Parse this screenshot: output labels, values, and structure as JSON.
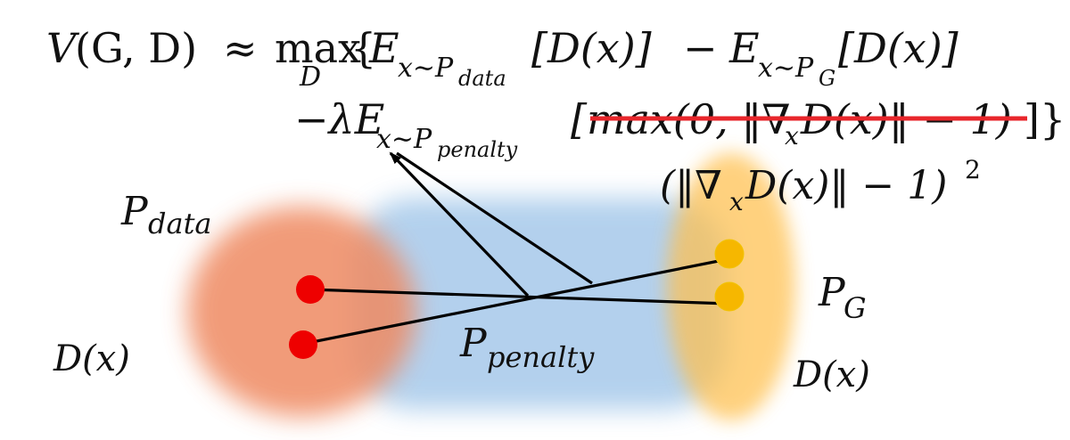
{
  "formula": {
    "lhs_v": "V",
    "lhs_args": "(G, D)",
    "approx": "≈",
    "max_word": "max",
    "max_sub": "D",
    "open_brace": "{",
    "e1": "E",
    "e1_sub": "x∼P",
    "e1_subsub": "data",
    "term1": "[D(x)]",
    "minus1": "−",
    "e2": "E",
    "e2_sub": "x∼P",
    "e2_subsub": "G",
    "term2": "[D(x)]",
    "minus_lambda": "−λE",
    "e3_sub": "x∼P",
    "e3_subsub": "penalty",
    "struck_term": "[max(0, ‖∇",
    "struck_nabla_sub": "x",
    "struck_term_rest": "D(x)‖ − 1)",
    "close": "]}",
    "replacement_open": "(‖∇",
    "replacement_sub": "x",
    "replacement_rest": "D(x)‖ − 1)",
    "replacement_exp": "2"
  },
  "labels": {
    "p_data_main": "P",
    "p_data_sub": "data",
    "p_g_main": "P",
    "p_g_sub": "G",
    "p_penalty_main": "P",
    "p_penalty_sub": "penalty",
    "d_left": "D(x)",
    "d_right": "D(x)"
  },
  "colors": {
    "data_region": "#ef8a62",
    "penalty_region": "#9ec4e8",
    "g_region": "#ffc04d",
    "data_point": "#ee0000",
    "g_point": "#f6b700",
    "strike": "#e8262b",
    "line": "#000000"
  }
}
